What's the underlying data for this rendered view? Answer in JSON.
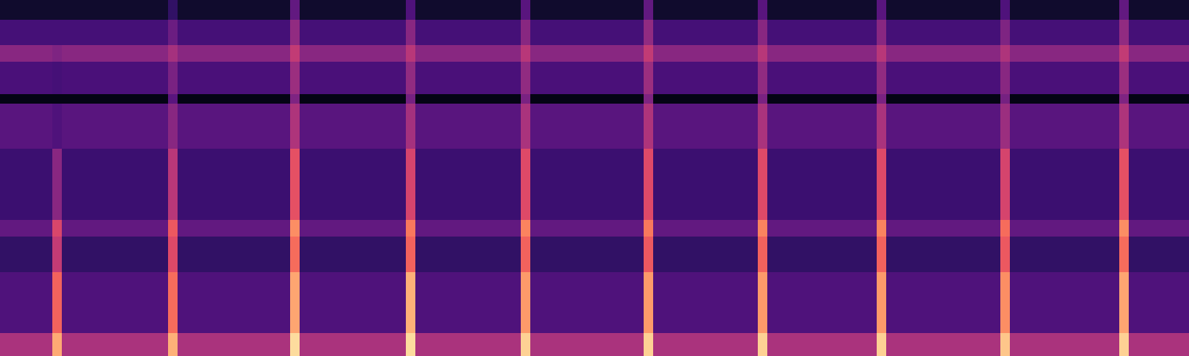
{
  "chart_data": {
    "type": "heatmap",
    "x": [
      0,
      0.44,
      0.52,
      1.41,
      1.49,
      2.44,
      2.52,
      3.41,
      3.49,
      4.38,
      4.46,
      5.41,
      5.49,
      6.37,
      6.45,
      7.37,
      7.45,
      8.41,
      8.49,
      9.41,
      9.49,
      10
    ],
    "y": [
      0,
      0.7,
      2.6,
      3.7,
      4.2,
      6.4,
      7.8,
      8.1,
      9.1,
      9.6,
      10.4,
      11
    ],
    "cells": [
      [
        -45,
        -15,
        -45,
        -14,
        -45,
        -6,
        -45,
        -6,
        -45,
        -8,
        -45,
        -8,
        -45,
        -8,
        -45,
        -8,
        -45,
        -10,
        -45,
        -8,
        -45
      ],
      [
        -64,
        -28,
        -64,
        -26,
        -64,
        -16,
        -64,
        -14,
        -64,
        -18,
        -64,
        -18,
        -64,
        -18,
        -64,
        -18,
        -64,
        -20,
        -64,
        -16,
        -64
      ],
      [
        -70,
        -40,
        -70,
        -34,
        -70,
        -26,
        -70,
        -28,
        -70,
        -28,
        -70,
        -30,
        -70,
        -28,
        -70,
        -28,
        -70,
        -30,
        -70,
        -26,
        -70
      ],
      [
        -60,
        -35,
        -60,
        -30,
        -60,
        -20,
        -60,
        -24,
        -60,
        -22,
        -60,
        -24,
        -60,
        -22,
        -60,
        -22,
        -60,
        -26,
        -60,
        -20,
        -60
      ],
      [
        -68,
        -52,
        -68,
        -42,
        -68,
        -32,
        -68,
        -36,
        -68,
        -34,
        -68,
        -34,
        -68,
        -34,
        -68,
        -34,
        -68,
        -36,
        -68,
        -32,
        -68
      ],
      [
        -62,
        -64,
        -62,
        -52,
        -62,
        -44,
        -62,
        -46,
        -62,
        -45,
        -62,
        -44,
        -62,
        -45,
        -62,
        -45,
        -62,
        -48,
        -62,
        -44,
        -62
      ],
      [
        -82,
        -82,
        -82,
        -62,
        -82,
        -54,
        -82,
        -56,
        -82,
        -55,
        -82,
        -54,
        -82,
        -55,
        -82,
        -55,
        -82,
        -56,
        -82,
        -54,
        -82
      ],
      [
        -65,
        -66,
        -65,
        -55,
        -65,
        -48,
        -65,
        -50,
        -65,
        -50,
        -65,
        -48,
        -65,
        -50,
        -65,
        -50,
        -65,
        -52,
        -65,
        -48,
        -65
      ],
      [
        -52,
        -54,
        -52,
        -46,
        -52,
        -40,
        -52,
        -42,
        -52,
        -42,
        -52,
        -40,
        -52,
        -42,
        -52,
        -42,
        -52,
        -44,
        -52,
        -40,
        -52
      ],
      [
        -66,
        -66,
        -66,
        -58,
        -66,
        -50,
        -66,
        -52,
        -66,
        -52,
        -66,
        -50,
        -66,
        -52,
        -66,
        -52,
        -66,
        -54,
        -66,
        -50,
        -66
      ],
      [
        -78,
        -78,
        -78,
        -70,
        -78,
        -60,
        -78,
        -64,
        -78,
        -62,
        -78,
        -60,
        -78,
        -62,
        -78,
        -62,
        -78,
        -64,
        -78,
        -60,
        -78
      ]
    ],
    "zlim": [
      -85,
      0
    ],
    "xlim": [
      0,
      10
    ],
    "ylim": [
      0,
      11
    ],
    "tick_labels": false
  }
}
